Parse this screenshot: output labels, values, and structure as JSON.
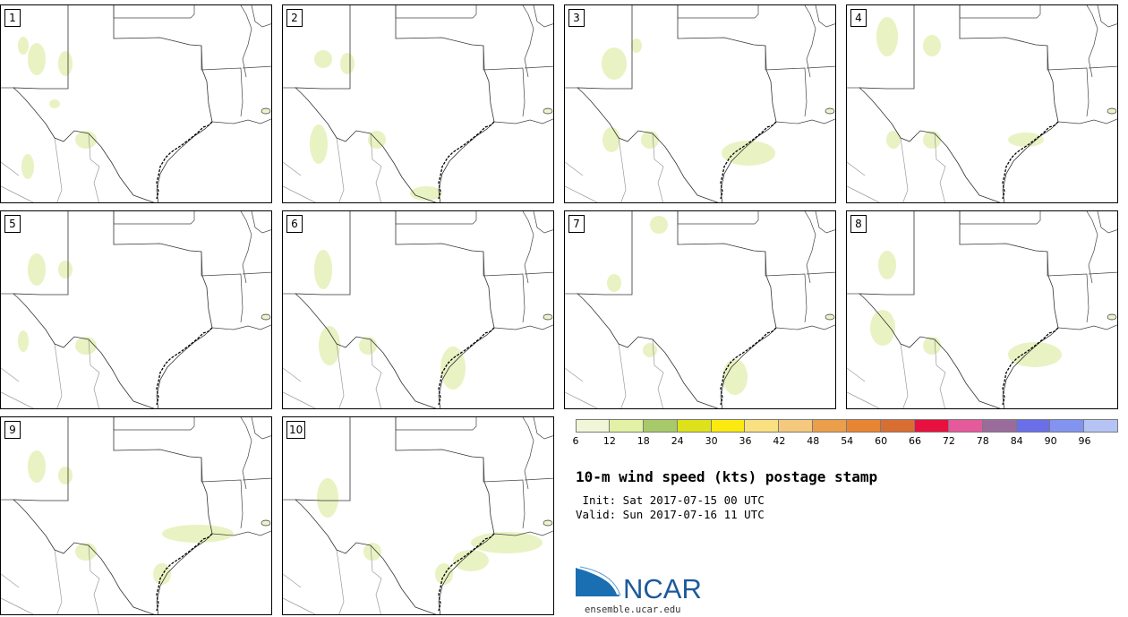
{
  "panels": [
    {
      "label": "1"
    },
    {
      "label": "2"
    },
    {
      "label": "3"
    },
    {
      "label": "4"
    },
    {
      "label": "5"
    },
    {
      "label": "6"
    },
    {
      "label": "7"
    },
    {
      "label": "8"
    },
    {
      "label": "9"
    },
    {
      "label": "10"
    }
  ],
  "colorbar": {
    "colors": [
      "#f2f6d8",
      "#e2f1a4",
      "#a8c96a",
      "#dde21a",
      "#fbea0f",
      "#f9e080",
      "#f4c97e",
      "#eb9f4a",
      "#e88533",
      "#d96e33",
      "#e8103e",
      "#e55a9a",
      "#9a6c9c",
      "#6a6ee8",
      "#8393f0",
      "#b6c4f5"
    ],
    "ticks": [
      "6",
      "12",
      "18",
      "24",
      "30",
      "36",
      "42",
      "48",
      "54",
      "60",
      "66",
      "72",
      "78",
      "84",
      "90",
      "96"
    ]
  },
  "title": "10-m wind speed (kts) postage stamp",
  "init_line": " Init: Sat 2017-07-15 00 UTC",
  "valid_line": "Valid: Sun 2017-07-16 11 UTC",
  "logo": {
    "text": "NCAR",
    "url": "ensemble.ucar.edu",
    "colors": {
      "swoosh": "#1a6fb3",
      "text": "#1c5a9a"
    }
  },
  "field_color": "#e9f2c2"
}
